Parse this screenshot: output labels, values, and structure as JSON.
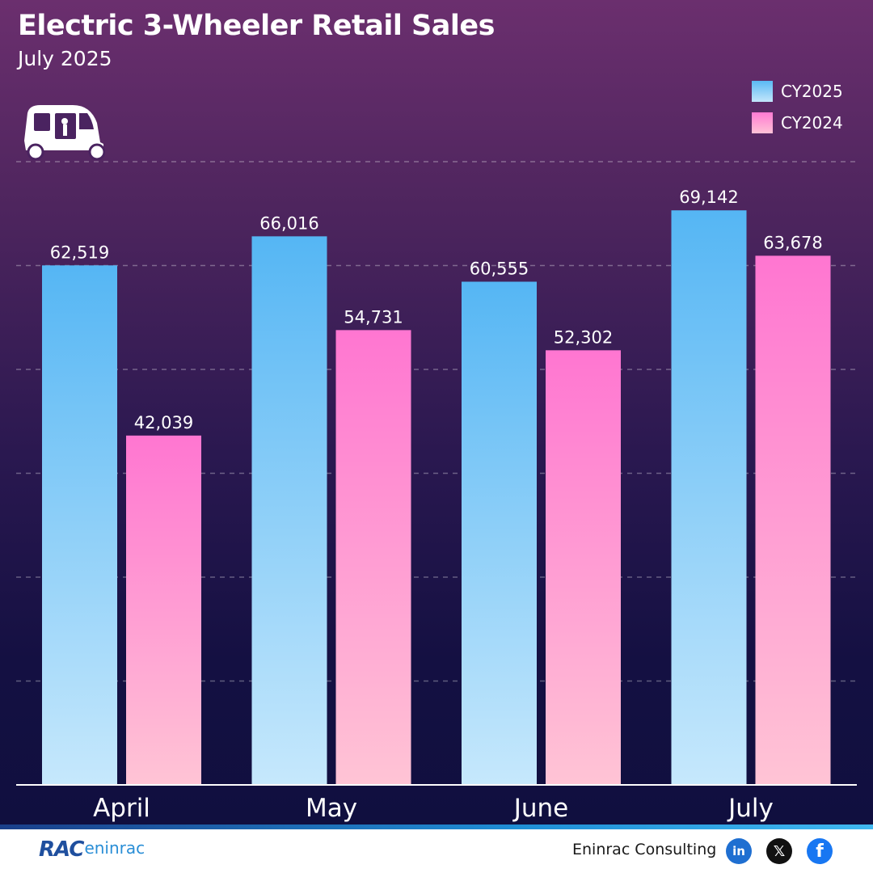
{
  "title": "Electric 3-Wheeler Retail Sales",
  "subtitle": "July 2025",
  "legend": [
    {
      "name": "CY2025",
      "color": "#5ab9f4"
    },
    {
      "name": "CY2024",
      "color": "#ff7ad3"
    }
  ],
  "chart_data": {
    "type": "bar",
    "title": "Electric 3-Wheeler Retail Sales",
    "subtitle": "July 2025",
    "categories": [
      "April",
      "May",
      "June",
      "July"
    ],
    "series": [
      {
        "name": "CY2025",
        "values": [
          62519,
          66016,
          60555,
          69142
        ],
        "value_labels": [
          "62,519",
          "66,016",
          "60,555",
          "69,142"
        ],
        "color": "#5ab9f4"
      },
      {
        "name": "CY2024",
        "values": [
          42039,
          54731,
          52302,
          63678
        ],
        "value_labels": [
          "42,039",
          "54,731",
          "52,302",
          "63,678"
        ],
        "color": "#ff7ad3"
      }
    ],
    "ylim": [
      0,
      75000
    ],
    "grid": true,
    "legend_position": "top-right",
    "xlabel": "",
    "ylabel": ""
  },
  "footer": {
    "logo_mark": "RAC",
    "logo_word": "eninrac",
    "company": "Eninrac Consulting",
    "social": [
      {
        "icon": "linkedin-icon",
        "glyph": "in"
      },
      {
        "icon": "x-icon",
        "glyph": "𝕏"
      },
      {
        "icon": "facebook-icon",
        "glyph": "f"
      }
    ]
  }
}
